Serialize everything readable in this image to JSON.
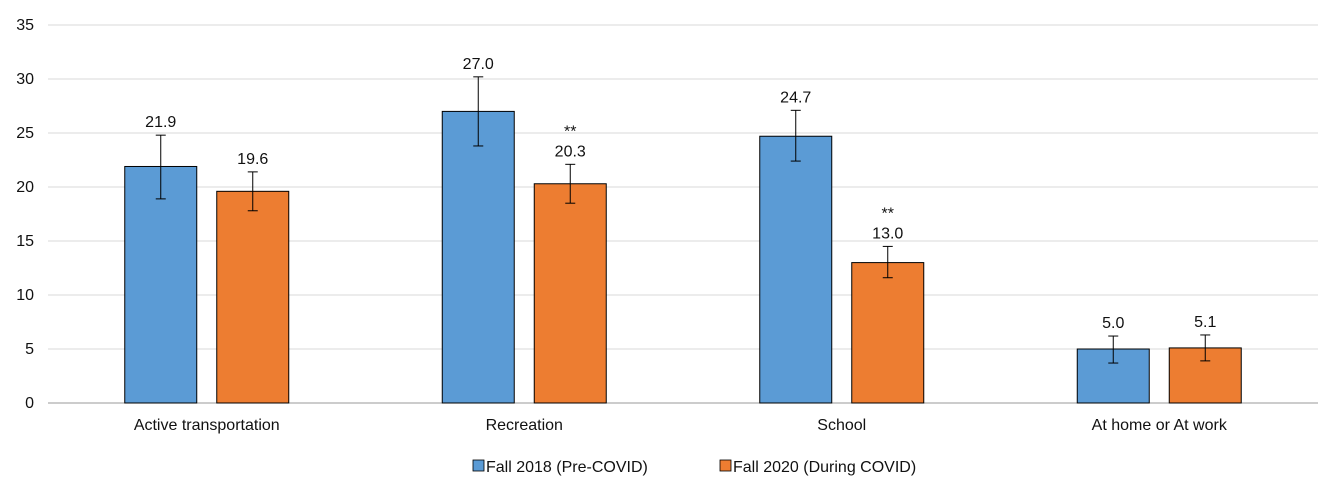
{
  "chart_data": {
    "type": "bar",
    "categories": [
      "Active transportation",
      "Recreation",
      "School",
      "At home or At work"
    ],
    "series": [
      {
        "name": "Fall 2018 (Pre-COVID)",
        "color": "#5b9bd5",
        "values": [
          21.9,
          27.0,
          24.7,
          5.0
        ],
        "error_low": [
          18.9,
          23.8,
          22.4,
          3.7
        ],
        "error_high": [
          24.8,
          30.2,
          27.1,
          6.2
        ],
        "value_labels": [
          "21.9",
          "27.0",
          "24.7",
          "5.0"
        ],
        "significance": [
          "",
          "",
          "",
          ""
        ]
      },
      {
        "name": "Fall 2020 (During COVID)",
        "color": "#ed7d31",
        "values": [
          19.6,
          20.3,
          13.0,
          5.1
        ],
        "error_low": [
          17.8,
          18.5,
          11.6,
          3.9
        ],
        "error_high": [
          21.4,
          22.1,
          14.5,
          6.3
        ],
        "value_labels": [
          "19.6",
          "20.3",
          "13.0",
          "5.1"
        ],
        "significance": [
          "",
          "**",
          "**",
          ""
        ]
      }
    ],
    "yticks": [
      "0",
      "5",
      "10",
      "15",
      "20",
      "25",
      "30",
      "35"
    ],
    "ylim": [
      0,
      35
    ],
    "grid": true,
    "legend_position": "bottom-center"
  }
}
